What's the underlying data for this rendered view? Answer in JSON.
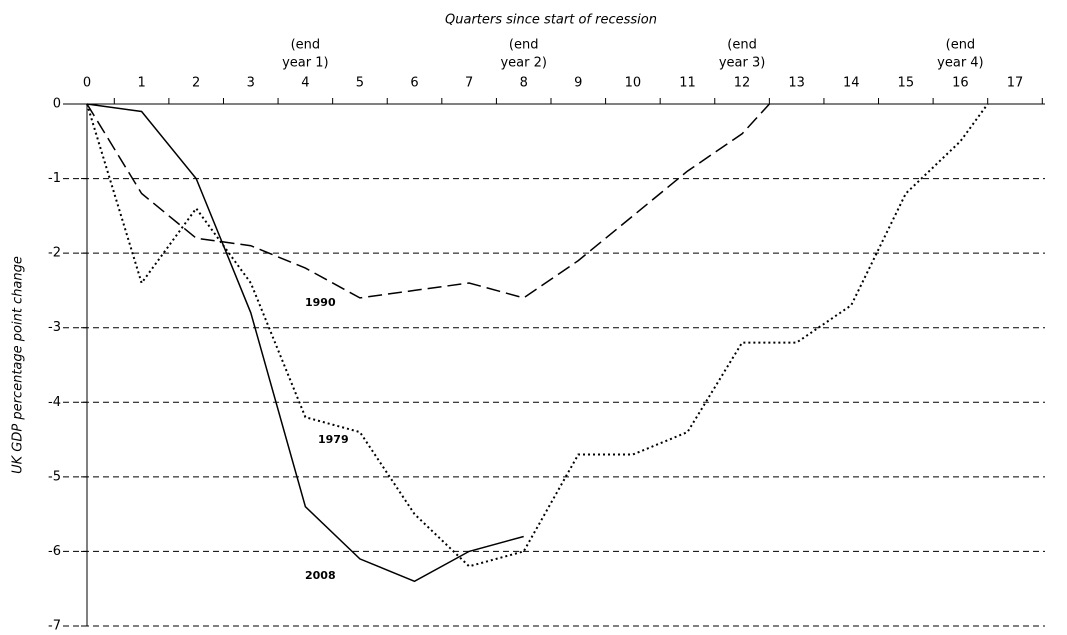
{
  "chart_data": {
    "type": "line",
    "x_label": "Quarters since start of recession",
    "y_label": "UK GDP percentage point change",
    "xlim": [
      0,
      17
    ],
    "xticks": [
      0,
      1,
      2,
      3,
      4,
      5,
      6,
      7,
      8,
      9,
      10,
      11,
      12,
      13,
      14,
      15,
      16,
      17
    ],
    "ylim": [
      -7,
      0
    ],
    "yticks": [
      0,
      -1,
      -2,
      -3,
      -4,
      -5,
      -6,
      -7
    ],
    "grid": true,
    "annotations": [
      {
        "x": 4,
        "lines": [
          "(end",
          "year 1)"
        ]
      },
      {
        "x": 8,
        "lines": [
          "(end",
          "year 2)"
        ]
      },
      {
        "x": 12,
        "lines": [
          "(end",
          "year 3)"
        ]
      },
      {
        "x": 16,
        "lines": [
          "(end",
          "year 4)"
        ]
      }
    ],
    "series": [
      {
        "name": "2008",
        "color": "#000000",
        "style": "solid",
        "x": [
          0,
          1,
          2,
          3,
          4,
          5,
          6,
          7,
          8
        ],
        "values": [
          0,
          -0.1,
          -1.0,
          -2.8,
          -5.4,
          -6.1,
          -6.4,
          -6.0,
          -5.8
        ]
      },
      {
        "name": "1990",
        "color": "#000000",
        "style": "dashed",
        "x": [
          0,
          1,
          2,
          3,
          4,
          5,
          6,
          7,
          8,
          9,
          10,
          11,
          12,
          12.5
        ],
        "values": [
          0,
          -1.2,
          -1.8,
          -1.9,
          -2.2,
          -2.6,
          -2.5,
          -2.4,
          -2.6,
          -2.1,
          -1.5,
          -0.9,
          -0.4,
          0
        ]
      },
      {
        "name": "1979",
        "color": "#000000",
        "style": "dotted",
        "x": [
          0,
          1,
          2,
          3,
          4,
          5,
          6,
          7,
          8,
          9,
          10,
          11,
          12,
          13,
          14,
          15,
          16,
          16.5
        ],
        "values": [
          0,
          -2.4,
          -1.4,
          -2.4,
          -4.2,
          -4.4,
          -5.5,
          -6.2,
          -6.0,
          -4.7,
          -4.7,
          -4.4,
          -3.2,
          -3.2,
          -2.7,
          -1.2,
          -0.5,
          0
        ]
      }
    ]
  }
}
